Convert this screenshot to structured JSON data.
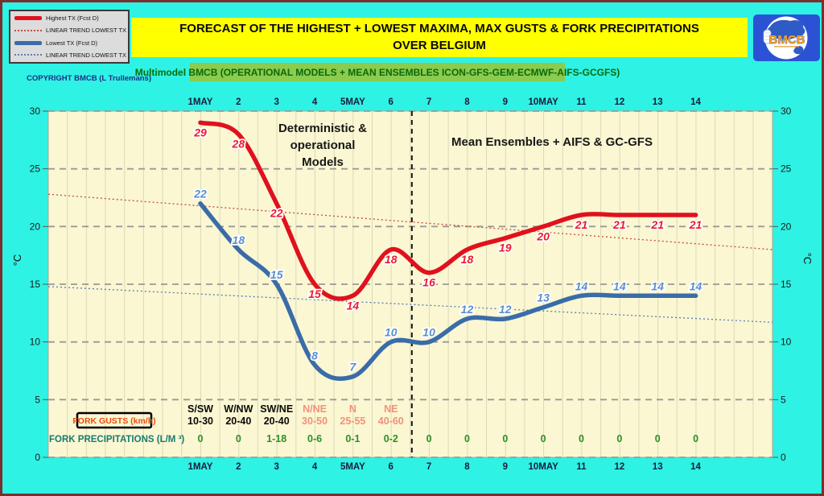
{
  "window": {
    "background": "#2EF2E3",
    "frame_color": "#7A2E2E"
  },
  "title": {
    "line1": "FORECAST OF THE HIGHEST + LOWEST MAXIMA, MAX GUSTS & FORK PRECIPITATIONS",
    "line2": "OVER BELGIUM",
    "background": "#FFFF00"
  },
  "subtitle": {
    "text": "Multimodel BMCB (OPERATIONAL MODELS + MEAN ENSEMBLES  ICON-GFS-GEM-ECMWF-AIFS-GCGFS)",
    "background": "#8BCB4D",
    "text_color": "#0A6A0A"
  },
  "copyright": "COPYRIGHT BMCB (L Trullemans)",
  "logo": {
    "text": "BMCB"
  },
  "legend": {
    "items": [
      {
        "label": "Highest TX (Fcst D)",
        "swatch": "red-line"
      },
      {
        "label": "LINEAR TREND LOWEST  TX",
        "swatch": "red-dotted"
      },
      {
        "label": "Lowest TX (Fcst D)",
        "swatch": "blue-line"
      },
      {
        "label": "LINEAR TREND LOWEST TX",
        "swatch": "blue-dotted"
      }
    ]
  },
  "chart_data": {
    "type": "line",
    "x_labels": [
      "1MAY",
      "2",
      "3",
      "4",
      "5MAY",
      "6",
      "7",
      "8",
      "9",
      "10MAY",
      "11",
      "12",
      "13",
      "14"
    ],
    "ylabel_left": "°C",
    "ylabel_right": "°C",
    "ylim": [
      0,
      30
    ],
    "yticks": [
      0,
      5,
      10,
      15,
      20,
      25,
      30
    ],
    "grid": "horizontal-dashed-and-vertical-minor",
    "plot_background": "#FAF7D2",
    "series": [
      {
        "name": "Highest TX (Fcst D)",
        "color": "#E0111E",
        "label_color": "#ED1B2E",
        "values": [
          29,
          28,
          22,
          15,
          14,
          18,
          16,
          18,
          19,
          20,
          21,
          21,
          21,
          21
        ]
      },
      {
        "name": "Lowest TX (Fcst D)",
        "color": "#3A6CA8",
        "label_color": "#5C8FCC",
        "values": [
          22,
          18,
          15,
          8,
          7,
          10,
          10,
          12,
          12,
          13,
          14,
          14,
          14,
          14
        ]
      }
    ],
    "trend_lines": [
      {
        "name": "LINEAR TREND LOWEST TX",
        "color": "#C84B3A",
        "start_value": 22.8,
        "end_value": 18.0
      },
      {
        "name": "LINEAR TREND LOWEST TX",
        "color": "#5A7FB5",
        "start_value": 14.8,
        "end_value": 11.7
      }
    ],
    "divider_after_day": 6.55,
    "annotations": [
      {
        "lines": [
          "Deterministic &",
          "operational",
          "Models"
        ]
      },
      {
        "lines": [
          "Mean Ensembles + AIFS & GC-GFS"
        ]
      }
    ]
  },
  "gusts": {
    "label": "FORK GUSTS (km/h)",
    "label_color": "#E94E0F",
    "entries": [
      {
        "dir": "S/SW",
        "range": "10-30",
        "alert": false
      },
      {
        "dir": "W/NW",
        "range": "20-40",
        "alert": false
      },
      {
        "dir": "SW/NE",
        "range": "20-40",
        "alert": false
      },
      {
        "dir": "N/NE",
        "range": "30-50",
        "alert": true
      },
      {
        "dir": "N",
        "range": "25-55",
        "alert": true
      },
      {
        "dir": "NE",
        "range": "40-60",
        "alert": true
      }
    ],
    "alert_color": "#F2917C",
    "normal_color": "#0a0a0a"
  },
  "precip": {
    "label": "FORK PRECIPITATIONS (L/M ³)",
    "label_color": "#187A70",
    "value_color": "#2F8F28",
    "values": [
      "0",
      "0",
      "1-18",
      "0-6",
      "0-1",
      "0-2",
      "0",
      "0",
      "0",
      "0",
      "0",
      "0",
      "0",
      "0"
    ]
  }
}
